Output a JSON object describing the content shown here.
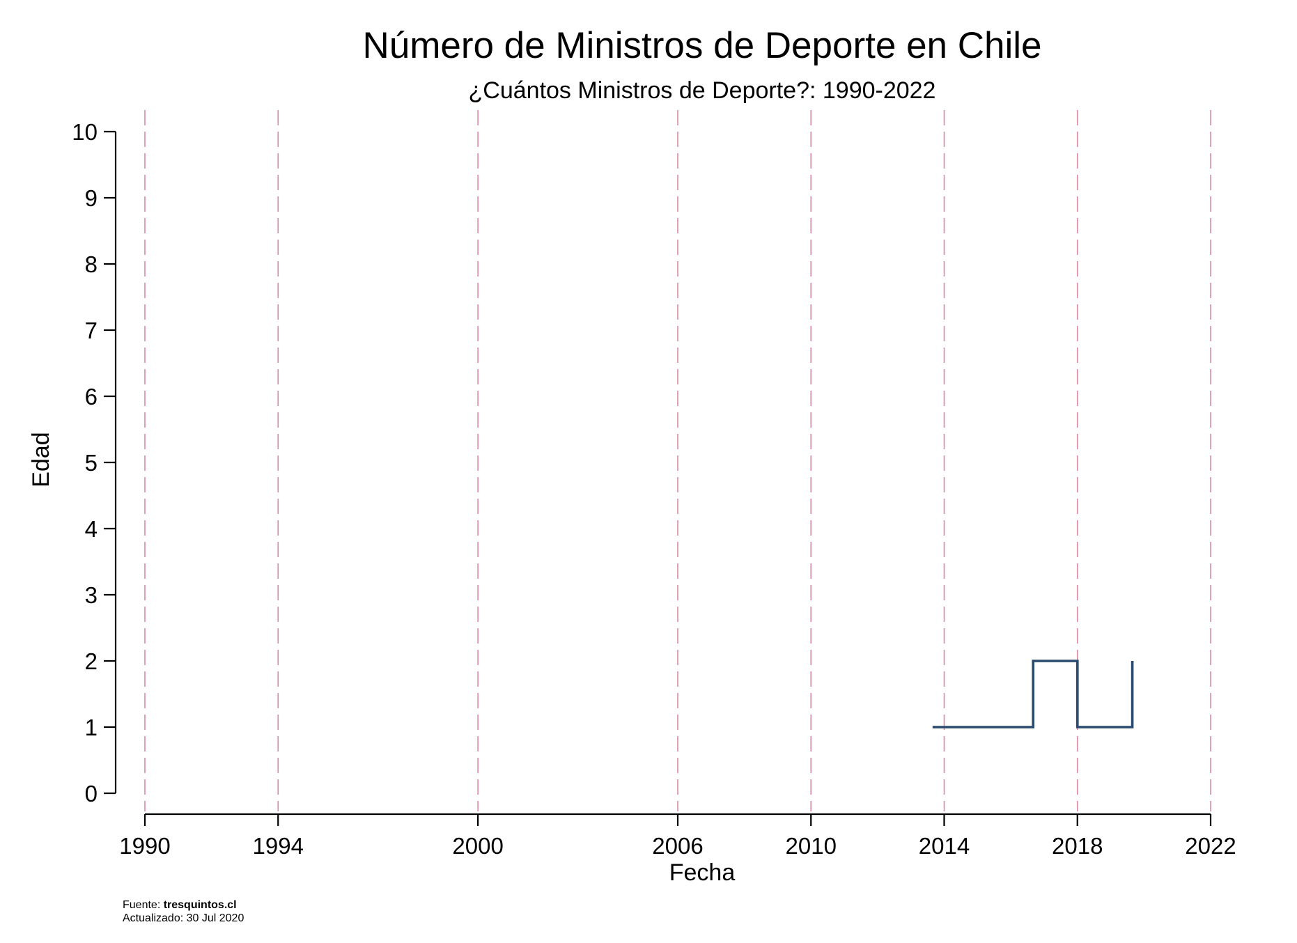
{
  "chart_data": {
    "type": "line",
    "line_style": "step",
    "title": "Número de Ministros de Deporte en Chile",
    "subtitle": "¿Cuántos Ministros de Deporte?: 1990-2022",
    "xlabel": "Fecha",
    "ylabel": "Edad",
    "xlim": [
      1990,
      2022
    ],
    "ylim": [
      0,
      10
    ],
    "x_ticks": [
      1990,
      1994,
      2000,
      2006,
      2010,
      2014,
      2018,
      2022
    ],
    "y_ticks": [
      0,
      1,
      2,
      3,
      4,
      5,
      6,
      7,
      8,
      9,
      10
    ],
    "reference_lines_x": [
      1990,
      1994,
      2000,
      2006,
      2010,
      2014,
      2018,
      2022
    ],
    "reference_line_color": "#d98a9e",
    "grid": false,
    "series": [
      {
        "color": "#2b4a6f",
        "points": [
          {
            "x": 2013.65,
            "y": 1
          },
          {
            "x": 2016.67,
            "y": 1
          },
          {
            "x": 2016.67,
            "y": 2
          },
          {
            "x": 2018.0,
            "y": 2
          },
          {
            "x": 2018.0,
            "y": 1
          },
          {
            "x": 2019.65,
            "y": 1
          },
          {
            "x": 2019.65,
            "y": 2
          }
        ]
      }
    ]
  },
  "footer": {
    "source_prefix": "Fuente: ",
    "source_name": "tresquintos.cl",
    "updated": "Actualizado: 30 Jul 2020"
  }
}
